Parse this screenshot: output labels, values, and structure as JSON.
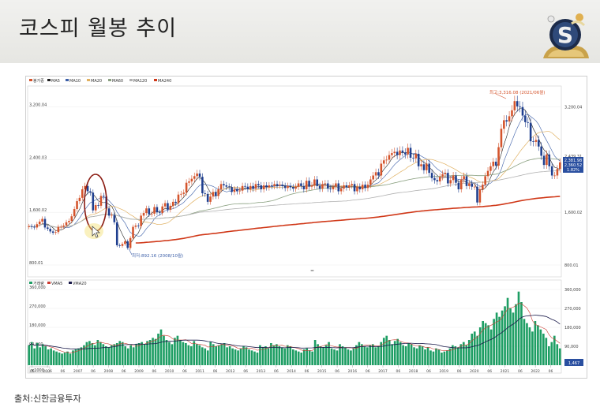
{
  "slide": {
    "title": "코스피 월봉 추이",
    "source": "출처:신한금융투자"
  },
  "colors": {
    "candle_up": "#d4542c",
    "candle_down": "#1f3f8f",
    "ma5": "#222222",
    "ma10": "#3c5fa8",
    "ma20": "#e0b060",
    "ma60": "#8aa080",
    "ma120": "#b0b0b0",
    "ma240": "#d03818",
    "volume_bar": "#1e9e64",
    "vma5": "#cc3a30",
    "vma20": "#1a1a4a",
    "highlight_circle": "#8a1a10"
  },
  "chart_data": [
    {
      "type": "candlestick",
      "legend": [
        "봉가중",
        "MA5",
        "MA10",
        "MA20",
        "MA60",
        "MA120",
        "MA240"
      ],
      "y_tick_labels": [
        "3,200.04",
        "2,400.03",
        "1,600.02",
        "800.01"
      ],
      "y_ticks": [
        3200.04,
        2400.03,
        1600.02,
        800.01
      ],
      "ylim": [
        620,
        3520
      ],
      "annotations": {
        "high": "최고:3,316.08 (2021/06월)",
        "low": "최저:892.16 (2008/10월)"
      },
      "last_price_box": [
        "2,381.98",
        "2,360.52",
        "1.82%"
      ],
      "right_labels": [
        "2,439.31",
        "2,400.03"
      ],
      "monthly_close": [
        1390,
        1380,
        1370,
        1420,
        1460,
        1500,
        1370,
        1350,
        1310,
        1290,
        1300,
        1380,
        1380,
        1400,
        1450,
        1470,
        1540,
        1650,
        1770,
        1820,
        1950,
        2000,
        1920,
        1900,
        1630,
        1710,
        1700,
        1850,
        1840,
        1660,
        1550,
        1560,
        1450,
        1100,
        1090,
        1120,
        1160,
        1060,
        1210,
        1380,
        1400,
        1390,
        1550,
        1590,
        1660,
        1570,
        1580,
        1680,
        1600,
        1590,
        1690,
        1740,
        1640,
        1700,
        1760,
        1740,
        1870,
        1880,
        1900,
        2050,
        2070,
        2110,
        2150,
        2190,
        2140,
        1890,
        1880,
        1760,
        1840,
        1910,
        1850,
        1950,
        2030,
        2010,
        1990,
        1980,
        1910,
        1950,
        1920,
        1930,
        2000,
        1990,
        1950,
        2000,
        1960,
        2030,
        2010,
        1950,
        2010,
        1980,
        2010,
        2000,
        2030,
        2010,
        2020,
        2000,
        1970,
        2000,
        1980,
        1960,
        1990,
        2040,
        2000,
        1950,
        2080,
        1990,
        2010,
        2100,
        2000,
        1960,
        2030,
        2040,
        1960,
        1950,
        1990,
        2040,
        1920,
        1960,
        2010,
        1980,
        2010,
        2030,
        1920,
        1990,
        1950,
        2020,
        1970,
        2020,
        2100,
        2160,
        2210,
        2160,
        2340,
        2390,
        2400,
        2470,
        2500,
        2520,
        2470,
        2540,
        2510,
        2480,
        2580,
        2430,
        2420,
        2490,
        2300,
        2330,
        2240,
        2340,
        2200,
        2120,
        2090,
        2070,
        2140,
        2180,
        2200,
        2040,
        2090,
        2160,
        2050,
        1950,
        2100,
        2150,
        2000,
        2040,
        1990,
        1990,
        1750,
        1950,
        2020,
        2150,
        2230,
        2300,
        2370,
        2310,
        2590,
        2870,
        3000,
        2980,
        3060,
        3150,
        3290,
        3210,
        3200,
        3070,
        2970,
        2960,
        2680,
        2670,
        2700,
        2600,
        2460,
        2320,
        2480,
        2300,
        2160,
        2160,
        2260,
        2360
      ]
    },
    {
      "type": "bar",
      "legend": [
        "거래량",
        "VMA5",
        "VMA20"
      ],
      "y_tick_labels": [
        "360,000",
        "270,000",
        "180,000",
        "90,000"
      ],
      "y_ticks": [
        360000,
        270000,
        180000,
        90000
      ],
      "ylim": [
        0,
        390000
      ],
      "unit_label": "×1000",
      "last_value_label": "1,467",
      "x_tick_labels": [
        "06",
        "2006",
        "06",
        "2007",
        "06",
        "2008",
        "06",
        "2009",
        "06",
        "2010",
        "06",
        "2011",
        "06",
        "2012",
        "06",
        "2013",
        "06",
        "2014",
        "06",
        "2015",
        "06",
        "2016",
        "06",
        "2017",
        "06",
        "2018",
        "06",
        "2019",
        "06",
        "2020",
        "06",
        "2021",
        "06",
        "2022",
        "06"
      ],
      "values_thousands": [
        95,
        110,
        80,
        105,
        85,
        100,
        90,
        75,
        80,
        70,
        65,
        60,
        55,
        60,
        65,
        55,
        70,
        75,
        80,
        85,
        95,
        110,
        115,
        105,
        95,
        120,
        110,
        100,
        90,
        85,
        95,
        100,
        105,
        115,
        110,
        90,
        80,
        95,
        85,
        100,
        105,
        110,
        100,
        115,
        120,
        130,
        125,
        150,
        170,
        140,
        120,
        110,
        100,
        130,
        140,
        120,
        110,
        105,
        95,
        90,
        115,
        100,
        95,
        85,
        80,
        70,
        110,
        100,
        90,
        95,
        100,
        105,
        85,
        90,
        80,
        75,
        70,
        80,
        90,
        85,
        75,
        70,
        65,
        60,
        95,
        85,
        90,
        80,
        105,
        95,
        100,
        90,
        85,
        80,
        95,
        90,
        75,
        70,
        65,
        60,
        75,
        80,
        70,
        65,
        120,
        100,
        90,
        85,
        95,
        110,
        80,
        75,
        70,
        100,
        90,
        85,
        75,
        70,
        80,
        95,
        110,
        100,
        90,
        85,
        95,
        100,
        85,
        90,
        110,
        130,
        140,
        120,
        100,
        115,
        125,
        110,
        95,
        90,
        105,
        100,
        85,
        80,
        95,
        90,
        75,
        85,
        70,
        65,
        80,
        75,
        60,
        65,
        70,
        80,
        95,
        90,
        85,
        100,
        110,
        95,
        120,
        150,
        160,
        140,
        180,
        210,
        200,
        190,
        170,
        220,
        250,
        230,
        260,
        280,
        320,
        270,
        250,
        290,
        350,
        300,
        220,
        200,
        180,
        160,
        210,
        190,
        170,
        150,
        130,
        90,
        110,
        140,
        100,
        80
      ]
    }
  ]
}
